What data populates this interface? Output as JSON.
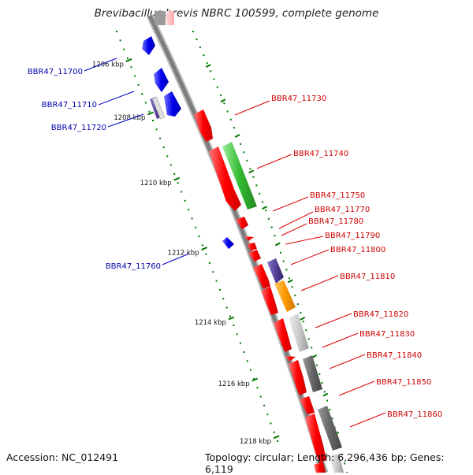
{
  "title": "Brevibacillus brevis NBRC 100599, complete genome",
  "footer": {
    "accession": "Accession: NC_012491",
    "summary": "Topology: circular; Length: 6,296,436 bp; Genes: 6,119"
  },
  "colors": {
    "backbone": "#8a8a8a",
    "forward_strand": "#ff0000",
    "reverse_strand": "#0000ee",
    "tick_marks": "#007700",
    "forward_label": "#cc0000",
    "reverse_label": "#0000aa",
    "gene_green": "#33bb33",
    "gene_purple": "#554499",
    "gene_orange": "#ff9900",
    "gene_lightgray": "#c8c8c8",
    "gene_darkgray": "#666666"
  },
  "ticks": [
    "1206 kbp",
    "1208 kbp",
    "1210 kbp",
    "1212 kbp",
    "1214 kbp",
    "1216 kbp",
    "1218 kbp"
  ],
  "genes_reverse": [
    "BBR47_11700",
    "BBR47_11710",
    "BBR47_11720",
    "BBR47_11760"
  ],
  "genes_forward": [
    "BBR47_11730",
    "BBR47_11740",
    "BBR47_11750",
    "BBR47_11770",
    "BBR47_11780",
    "BBR47_11790",
    "BBR47_11800",
    "BBR47_11810",
    "BBR47_11820",
    "BBR47_11830",
    "BBR47_11840",
    "BBR47_11850",
    "BBR47_11860"
  ]
}
